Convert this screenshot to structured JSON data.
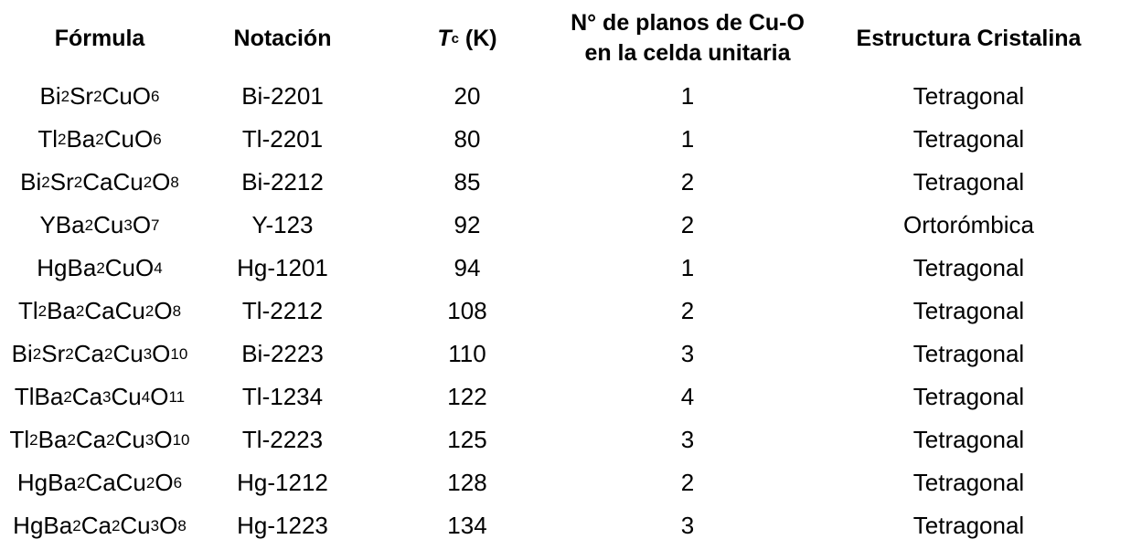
{
  "headers": {
    "formula": "Fórmula",
    "notation": "Notación",
    "tc_symbol": "T",
    "tc_subscript": "c",
    "tc_unit": " (K)",
    "planes_line1": "N° de planos de Cu-O",
    "planes_line2": "en la celda unitaria",
    "structure": "Estructura Cristalina"
  },
  "rows": [
    {
      "formula": [
        [
          "Bi",
          ""
        ],
        [
          "2",
          "sub"
        ],
        [
          "Sr",
          ""
        ],
        [
          "2",
          "sub"
        ],
        [
          "CuO",
          ""
        ],
        [
          "6",
          "sub"
        ]
      ],
      "notation": "Bi-2201",
      "tc": "20",
      "planes": "1",
      "structure": "Tetragonal"
    },
    {
      "formula": [
        [
          "Tl",
          ""
        ],
        [
          "2",
          "sub"
        ],
        [
          "Ba",
          ""
        ],
        [
          "2",
          "sub"
        ],
        [
          "CuO",
          ""
        ],
        [
          "6",
          "sub"
        ]
      ],
      "notation": "Tl-2201",
      "tc": "80",
      "planes": "1",
      "structure": "Tetragonal"
    },
    {
      "formula": [
        [
          "Bi",
          ""
        ],
        [
          "2",
          "sub"
        ],
        [
          "Sr",
          ""
        ],
        [
          "2",
          "sub"
        ],
        [
          "CaCu",
          ""
        ],
        [
          "2",
          "sub"
        ],
        [
          "O",
          ""
        ],
        [
          "8",
          "sub"
        ]
      ],
      "notation": "Bi-2212",
      "tc": "85",
      "planes": "2",
      "structure": "Tetragonal"
    },
    {
      "formula": [
        [
          "YBa",
          ""
        ],
        [
          "2",
          "sub"
        ],
        [
          "Cu",
          ""
        ],
        [
          "3",
          "sub"
        ],
        [
          "O",
          ""
        ],
        [
          "7",
          "sub"
        ]
      ],
      "notation": "Y-123",
      "tc": "92",
      "planes": "2",
      "structure": "Ortorómbica"
    },
    {
      "formula": [
        [
          "HgBa",
          ""
        ],
        [
          "2",
          "sub"
        ],
        [
          "CuO",
          ""
        ],
        [
          "4",
          "sub"
        ]
      ],
      "notation": "Hg-1201",
      "tc": "94",
      "planes": "1",
      "structure": "Tetragonal"
    },
    {
      "formula": [
        [
          "Tl",
          ""
        ],
        [
          "2",
          "sub"
        ],
        [
          "Ba",
          ""
        ],
        [
          "2",
          "sub"
        ],
        [
          "CaCu",
          ""
        ],
        [
          "2",
          "sub"
        ],
        [
          "O",
          ""
        ],
        [
          "8",
          "sub"
        ]
      ],
      "notation": "Tl-2212",
      "tc": "108",
      "planes": "2",
      "structure": "Tetragonal"
    },
    {
      "formula": [
        [
          "Bi",
          ""
        ],
        [
          "2",
          "sub"
        ],
        [
          "Sr",
          ""
        ],
        [
          "2",
          "sub"
        ],
        [
          "Ca",
          ""
        ],
        [
          "2",
          "sub"
        ],
        [
          "Cu",
          ""
        ],
        [
          "3",
          "sub"
        ],
        [
          "O",
          ""
        ],
        [
          "10",
          "sub"
        ]
      ],
      "notation": "Bi-2223",
      "tc": "110",
      "planes": "3",
      "structure": "Tetragonal"
    },
    {
      "formula": [
        [
          "TlBa",
          ""
        ],
        [
          "2",
          "sub"
        ],
        [
          "Ca",
          ""
        ],
        [
          "3",
          "sub"
        ],
        [
          "Cu",
          ""
        ],
        [
          "4",
          "sub"
        ],
        [
          "O",
          ""
        ],
        [
          "11",
          "sub"
        ]
      ],
      "notation": "Tl-1234",
      "tc": "122",
      "planes": "4",
      "structure": "Tetragonal"
    },
    {
      "formula": [
        [
          "Tl",
          ""
        ],
        [
          "2",
          "sub"
        ],
        [
          "Ba",
          ""
        ],
        [
          "2",
          "sub"
        ],
        [
          "Ca",
          ""
        ],
        [
          "2",
          "sub"
        ],
        [
          "Cu",
          ""
        ],
        [
          "3",
          "sub"
        ],
        [
          "O",
          ""
        ],
        [
          "10",
          "sub"
        ]
      ],
      "notation": "Tl-2223",
      "tc": "125",
      "planes": "3",
      "structure": "Tetragonal"
    },
    {
      "formula": [
        [
          "HgBa",
          ""
        ],
        [
          "2",
          "sub"
        ],
        [
          "CaCu",
          ""
        ],
        [
          "2",
          "sub"
        ],
        [
          "O",
          ""
        ],
        [
          "6",
          "sub"
        ]
      ],
      "notation": "Hg-1212",
      "tc": "128",
      "planes": "2",
      "structure": "Tetragonal"
    },
    {
      "formula": [
        [
          "HgBa",
          ""
        ],
        [
          "2",
          "sub"
        ],
        [
          "Ca",
          ""
        ],
        [
          "2",
          "sub"
        ],
        [
          "Cu",
          ""
        ],
        [
          "3",
          "sub"
        ],
        [
          "O",
          ""
        ],
        [
          "8",
          "sub"
        ]
      ],
      "notation": "Hg-1223",
      "tc": "134",
      "planes": "3",
      "structure": "Tetragonal"
    }
  ]
}
